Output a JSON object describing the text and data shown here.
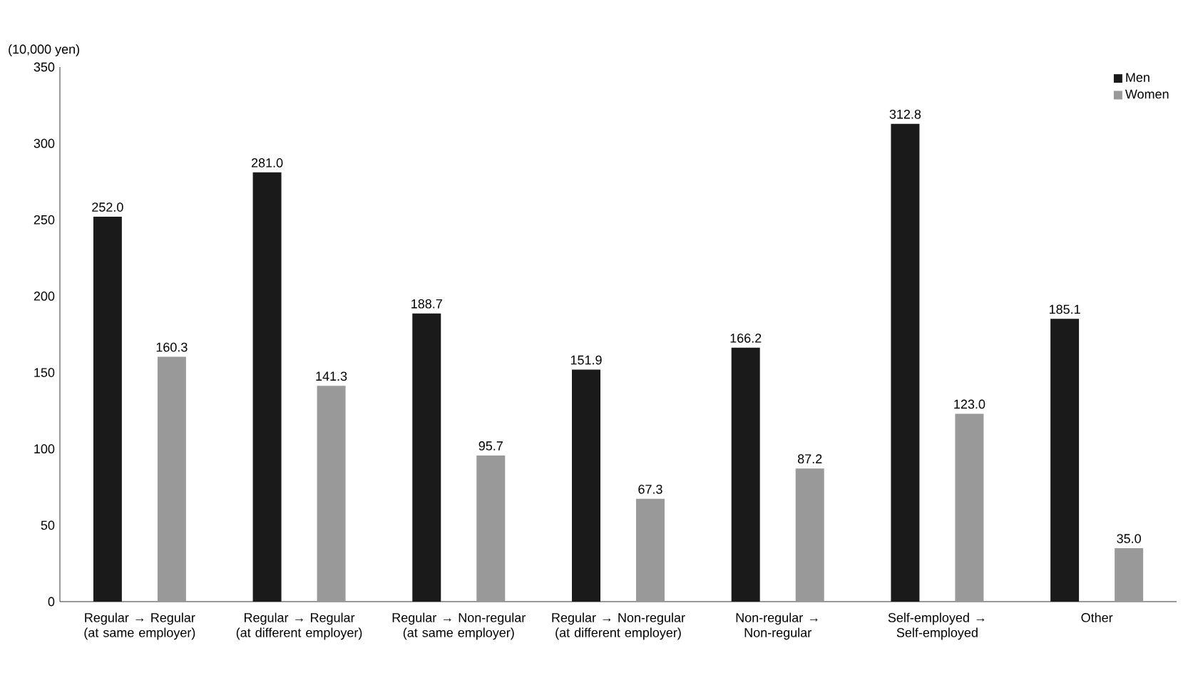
{
  "chart_data": {
    "type": "bar",
    "ylabel": "(10,000 yen)",
    "categories": [
      "Regular → Regular (at same employer)",
      "Regular → Regular (at different employer)",
      "Regular → Non-regular (at same employer)",
      "Regular → Non-regular (at different employer)",
      "Non-regular → Non-regular",
      "Self-employed → Self-employed",
      "Other"
    ],
    "series": [
      {
        "name": "Men",
        "color": "#1a1a1a",
        "values": [
          252.0,
          281.0,
          188.7,
          151.9,
          166.2,
          312.8,
          185.1
        ],
        "value_labels": [
          "252.0",
          "281.0",
          "188.7",
          "151.9",
          "166.2",
          "312.8",
          "185.1"
        ]
      },
      {
        "name": "Women",
        "color": "#999999",
        "values": [
          160.3,
          141.3,
          95.7,
          67.3,
          87.2,
          123.0,
          35.0
        ],
        "value_labels": [
          "160.3",
          "141.3",
          "95.7",
          "67.3",
          "87.2",
          "123.0",
          "35.0"
        ]
      }
    ],
    "ylim": [
      0,
      350
    ],
    "yticks": [
      0,
      50,
      100,
      150,
      200,
      250,
      300,
      350
    ],
    "legend": "top right",
    "grid": false
  }
}
